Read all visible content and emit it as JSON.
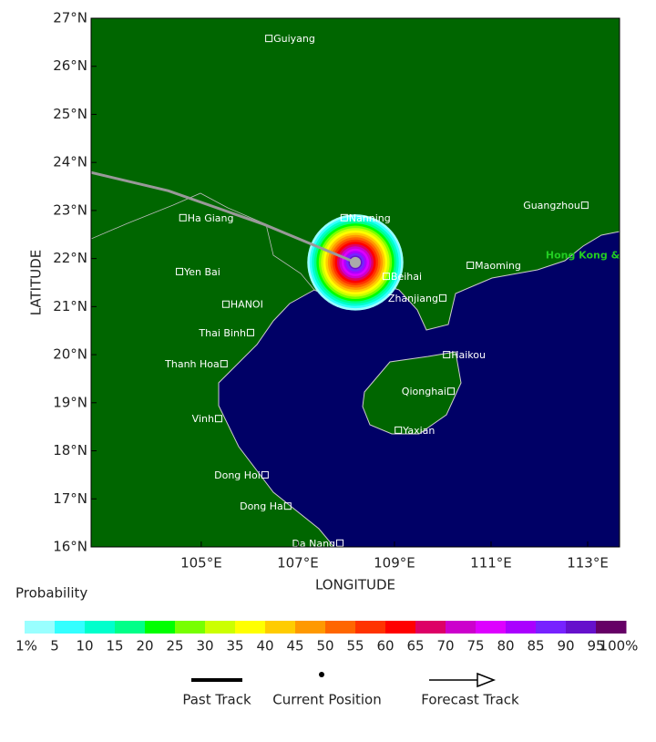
{
  "map": {
    "xlabel": "LONGITUDE",
    "ylabel": "LATITUDE",
    "xlim": [
      102.72,
      113.66
    ],
    "ylim": [
      16,
      27
    ],
    "xticks": [
      {
        "value": 105,
        "label": "105°E"
      },
      {
        "value": 107,
        "label": "107°E"
      },
      {
        "value": 109,
        "label": "109°E"
      },
      {
        "value": 111,
        "label": "111°E"
      },
      {
        "value": 113,
        "label": "113°E"
      }
    ],
    "yticks": [
      {
        "value": 16,
        "label": "16°N"
      },
      {
        "value": 17,
        "label": "17°N"
      },
      {
        "value": 18,
        "label": "18°N"
      },
      {
        "value": 19,
        "label": "19°N"
      },
      {
        "value": 20,
        "label": "20°N"
      },
      {
        "value": 21,
        "label": "21°N"
      },
      {
        "value": 22,
        "label": "22°N"
      },
      {
        "value": 23,
        "label": "23°N"
      },
      {
        "value": 24,
        "label": "24°N"
      },
      {
        "value": 25,
        "label": "25°N"
      },
      {
        "value": 26,
        "label": "26°N"
      },
      {
        "value": 27,
        "label": "27°N"
      }
    ],
    "cities": [
      {
        "name": "Guiyang",
        "lon": 106.4,
        "lat": 26.58
      },
      {
        "name": "Nanning",
        "lon": 107.96,
        "lat": 22.85
      },
      {
        "name": "Ha Giang",
        "lon": 104.62,
        "lat": 22.85
      },
      {
        "name": "Guangzhou",
        "lon": 112.94,
        "lat": 23.11
      },
      {
        "name": "Yen Bai",
        "lon": 104.55,
        "lat": 21.73
      },
      {
        "name": "Beihai",
        "lon": 108.83,
        "lat": 21.63
      },
      {
        "name": "Maoming",
        "lon": 110.57,
        "lat": 21.86
      },
      {
        "name": "HANOI",
        "lon": 105.51,
        "lat": 21.05
      },
      {
        "name": "Zhanjiang",
        "lon": 110.0,
        "lat": 21.18
      },
      {
        "name": "Thai Binh",
        "lon": 106.02,
        "lat": 20.46
      },
      {
        "name": "Thanh Hoa",
        "lon": 105.47,
        "lat": 19.81
      },
      {
        "name": "Haikou",
        "lon": 110.08,
        "lat": 20.0
      },
      {
        "name": "Qionghai",
        "lon": 110.17,
        "lat": 19.24
      },
      {
        "name": "Vinh",
        "lon": 105.36,
        "lat": 18.67
      },
      {
        "name": "Yaxian",
        "lon": 109.08,
        "lat": 18.43
      },
      {
        "name": "Dong Hoi",
        "lon": 106.32,
        "lat": 17.5
      },
      {
        "name": "Dong Ha",
        "lon": 106.79,
        "lat": 16.85
      },
      {
        "name": "Da Nang",
        "lon": 107.87,
        "lat": 16.08
      }
    ],
    "highlight_label": {
      "text": "Hong Kong &",
      "lon": 112.13,
      "lat": 22.06
    },
    "past_track": {
      "lon": [
        102.72,
        104.32,
        106.3,
        108.19
      ],
      "lat": [
        23.79,
        23.41,
        22.71,
        21.92
      ]
    },
    "current_position": {
      "lon": 108.19,
      "lat": 21.92
    },
    "probability_radius_deg": 1.0
  },
  "colorbar": {
    "title": "Probability",
    "colors": [
      "#99ffff",
      "#33ffff",
      "#00ffcc",
      "#00ff88",
      "#00ff00",
      "#77ff00",
      "#ccff00",
      "#ffff00",
      "#ffcc00",
      "#ff9900",
      "#ff6600",
      "#ff3300",
      "#ff0000",
      "#dd0066",
      "#cc00cc",
      "#dd00ff",
      "#aa00ff",
      "#7722ff",
      "#6611cc",
      "#660066"
    ],
    "labels": [
      "1%",
      "5",
      "10",
      "15",
      "20",
      "25",
      "30",
      "35",
      "40",
      "45",
      "50",
      "55",
      "60",
      "65",
      "70",
      "75",
      "80",
      "85",
      "90",
      "95",
      "100%"
    ]
  },
  "legend": {
    "items": [
      "Past Track",
      "Current Position",
      "Forecast Track"
    ]
  }
}
